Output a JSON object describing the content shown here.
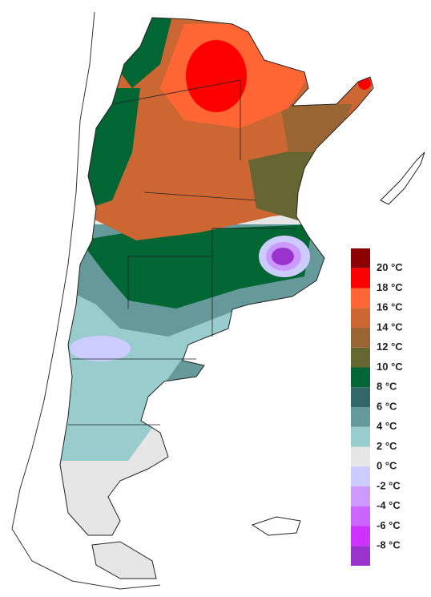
{
  "legend": {
    "swatches": [
      "#8b0000",
      "#ff0000",
      "#ff6633",
      "#cc6633",
      "#996633",
      "#666633",
      "#006633",
      "#336666",
      "#669999",
      "#99cccc",
      "#e6e6e6",
      "#ccccff",
      "#cc99ff",
      "#cc66ff",
      "#cc33ff",
      "#9933cc"
    ],
    "labels": [
      "20 °C",
      "18 °C",
      "16 °C",
      "14 °C",
      "12 °C",
      "10 °C",
      "8 °C",
      "6 °C",
      "4 °C",
      "2 °C",
      "0 °C",
      "-2 °C",
      "-4 °C",
      "-6 °C",
      "-8 °C"
    ]
  }
}
